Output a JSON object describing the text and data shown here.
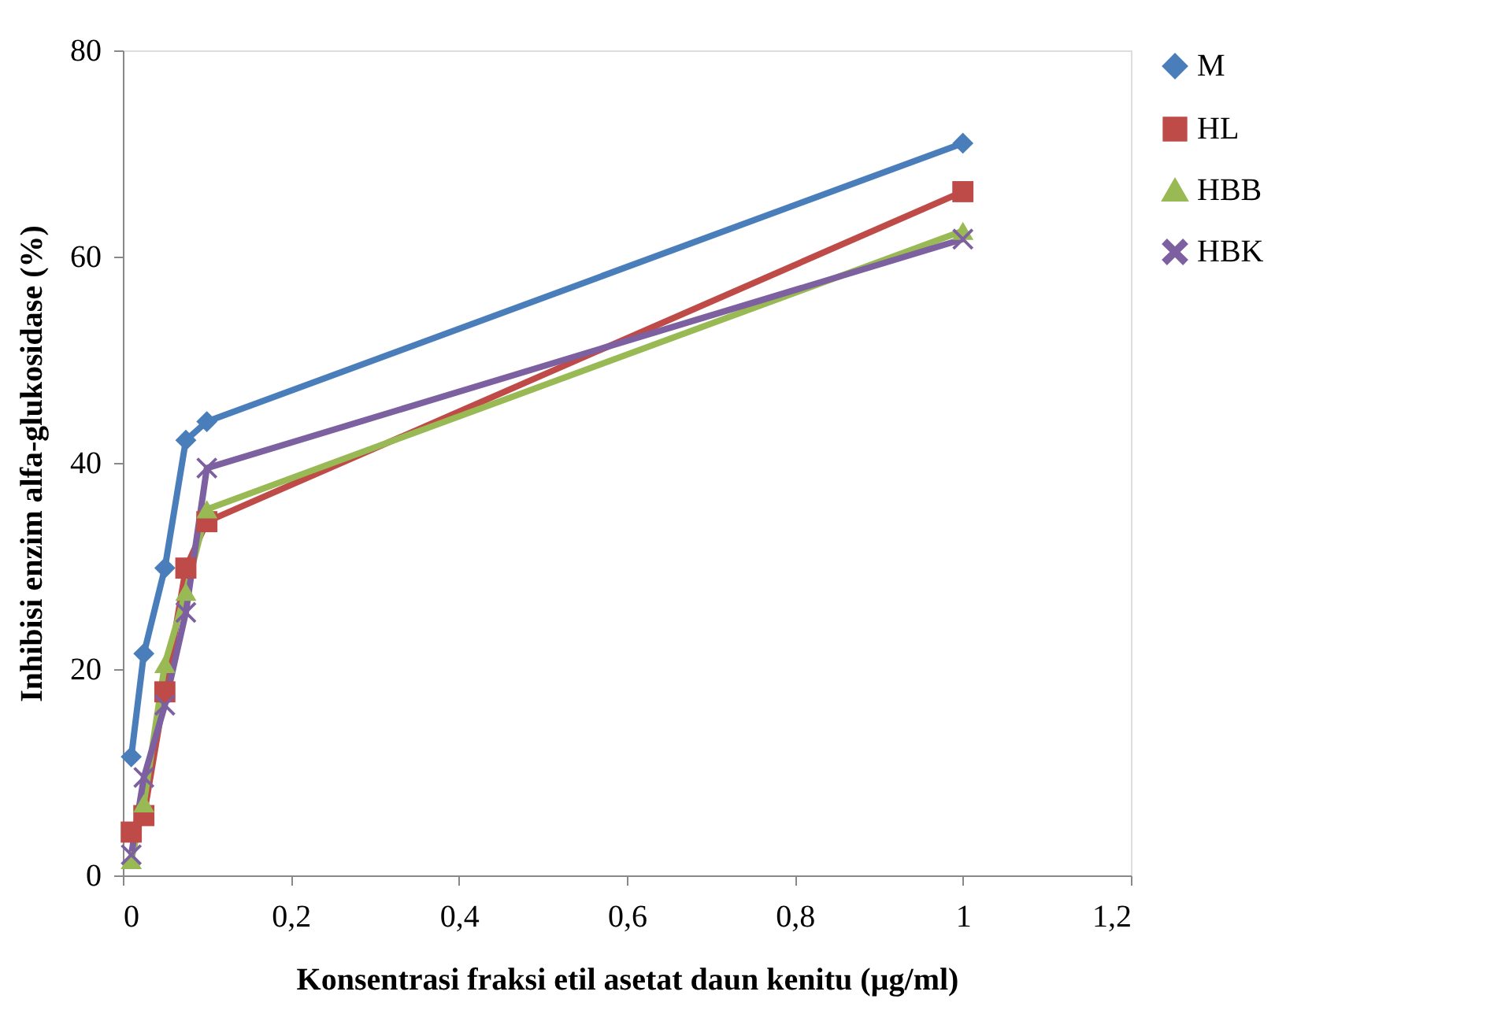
{
  "chart_data": {
    "type": "line",
    "xlabel": "Konsentrasi fraksi etil asetat daun kenitu (µg/ml)",
    "ylabel": "Inhibisi enzim alfa-glukosidase (%)",
    "x": [
      0.01,
      0.025,
      0.05,
      0.075,
      0.1,
      1
    ],
    "series": [
      {
        "name": "M",
        "color": "#4a7ebb",
        "marker": "diamond",
        "values": [
          11.5,
          21.5,
          29.8,
          42.2,
          44,
          71
        ]
      },
      {
        "name": "HL",
        "color": "#be4b48",
        "marker": "square",
        "values": [
          4.2,
          5.8,
          17.8,
          29.8,
          34.3,
          66.3
        ]
      },
      {
        "name": "HBB",
        "color": "#98b954",
        "marker": "triangle",
        "values": [
          1.5,
          7,
          20.5,
          27.5,
          35.5,
          62.5
        ]
      },
      {
        "name": "HBK",
        "color": "#7d60a0",
        "marker": "cross",
        "values": [
          2,
          9.5,
          16.5,
          25.5,
          39.5,
          61.7
        ]
      }
    ],
    "xlim": [
      0,
      1.2
    ],
    "xticks": [
      0,
      {
        "value": 0.2,
        "label": "0,2"
      },
      {
        "value": 0.4,
        "label": "0,4"
      },
      {
        "value": 0.6,
        "label": "0,6"
      },
      {
        "value": 0.8,
        "label": "0,8"
      },
      1,
      {
        "value": 1.2,
        "label": "1,2"
      }
    ],
    "ylim": [
      0,
      80
    ],
    "yticks": [
      0,
      20,
      40,
      60,
      80
    ],
    "grid": false,
    "legend": "right",
    "line_style": "solid"
  }
}
